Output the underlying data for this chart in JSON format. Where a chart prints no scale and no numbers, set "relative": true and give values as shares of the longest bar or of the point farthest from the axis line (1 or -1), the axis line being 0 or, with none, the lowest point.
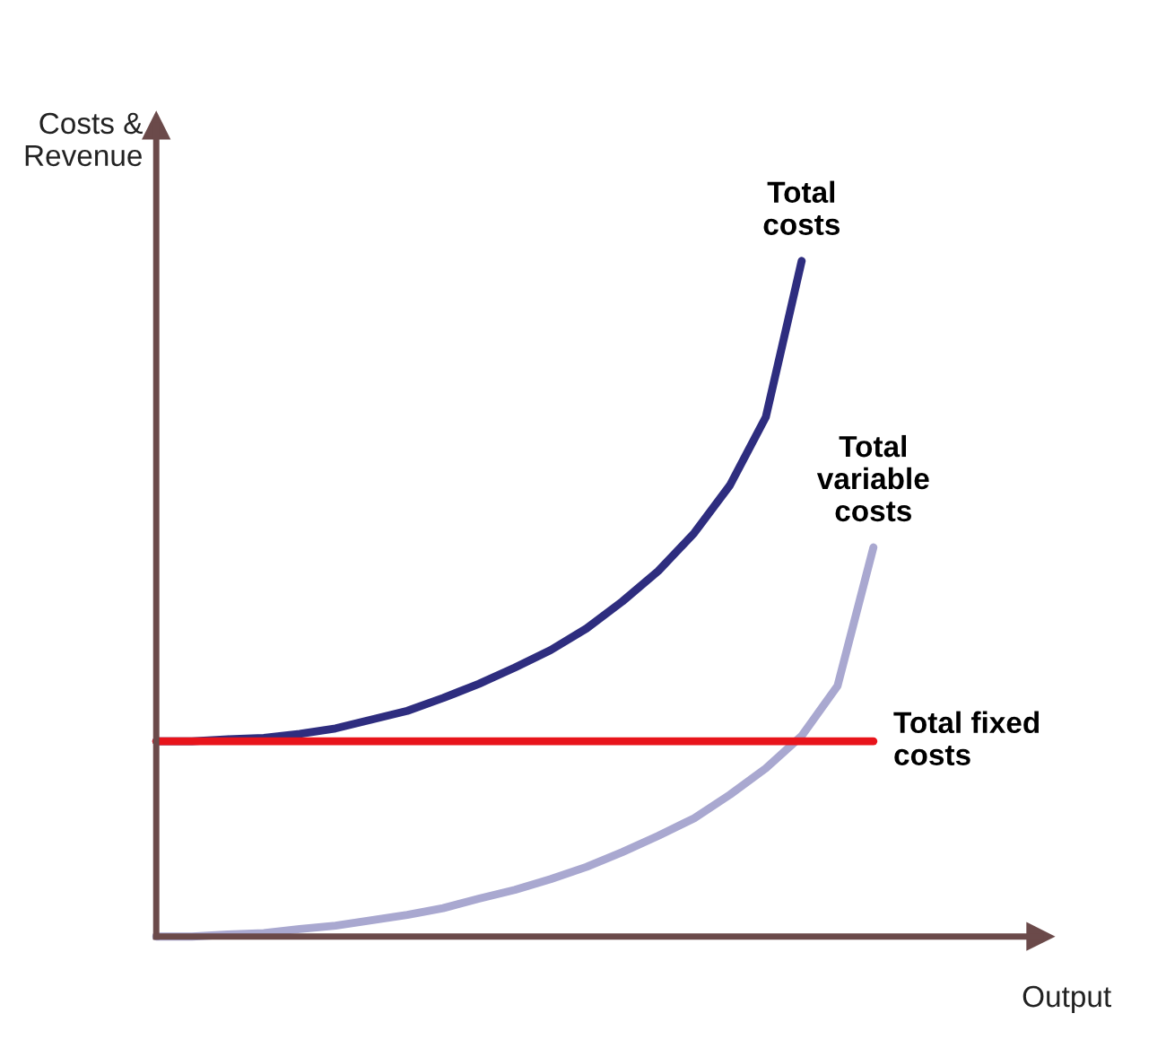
{
  "chart_data": {
    "type": "line",
    "relative": true,
    "xlabel": "Output",
    "ylabel": "Costs &\nRevenue",
    "categories": [
      null,
      null,
      null,
      null,
      null,
      null,
      null,
      null,
      null,
      null,
      null,
      null,
      null,
      null,
      null,
      null,
      null,
      null,
      null,
      null,
      null,
      null,
      null,
      null,
      null
    ],
    "series": [
      {
        "name": "Total\ncosts",
        "color": "#2e2d7f",
        "values": [
          0.289,
          0.289,
          0.292,
          0.294,
          0.3,
          0.308,
          0.321,
          0.334,
          0.353,
          0.374,
          0.398,
          0.424,
          0.456,
          0.496,
          0.541,
          0.597,
          0.668,
          0.769,
          1.0,
          null,
          null,
          null,
          null,
          null,
          null
        ]
      },
      {
        "name": "Total\nvariable\ncosts",
        "color": "#a9a8d0",
        "values": [
          0,
          0,
          0.003,
          0.005,
          0.011,
          0.016,
          0.024,
          0.032,
          0.042,
          0.056,
          0.069,
          0.085,
          0.103,
          0.125,
          0.149,
          0.175,
          0.21,
          0.249,
          0.297,
          0.371,
          0.576,
          null,
          null,
          null,
          null
        ]
      },
      {
        "name": "Total fixed\ncosts",
        "color": "#e8141b",
        "values": [
          0.289,
          0.289,
          0.289,
          0.289,
          0.289,
          0.289,
          0.289,
          0.289,
          0.289,
          0.289,
          0.289,
          0.289,
          0.289,
          0.289,
          0.289,
          0.289,
          0.289,
          0.289,
          0.289,
          0.289,
          0.289,
          null,
          null,
          null,
          null
        ]
      }
    ],
    "grid": false,
    "legend": false,
    "marker": "none",
    "line_style": "solid"
  }
}
